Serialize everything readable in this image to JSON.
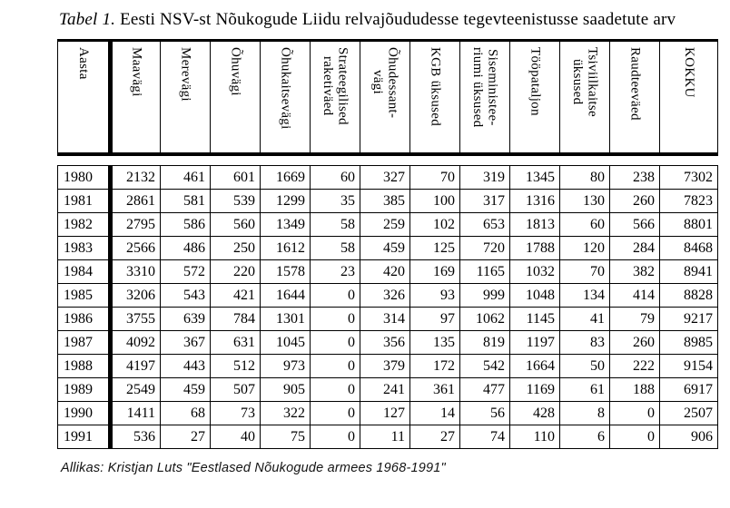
{
  "title": {
    "label_italic": "Tabel 1.",
    "label_rest": "Eesti NSV-st Nõukogude Liidu relvajõududesse tegevteenistusse saadetute arv"
  },
  "table": {
    "columns": [
      "Aasta",
      "Maavägi",
      "Merevägi",
      "Õhuvägi",
      "Õhukaitsevägi",
      "Strateegilised\nraketiväed",
      "Õhudessant-\nvägi",
      "KGB üksused",
      "Siseministee-\nriumi üksused",
      "Tööpataljon",
      "Tsiviilkaitse\nüksused",
      "Raudteeväed",
      "KOKKU"
    ],
    "rows": [
      {
        "year": "1980",
        "values": [
          2132,
          461,
          601,
          1669,
          60,
          327,
          70,
          319,
          1345,
          80,
          238,
          7302
        ]
      },
      {
        "year": "1981",
        "values": [
          2861,
          581,
          539,
          1299,
          35,
          385,
          100,
          317,
          1316,
          130,
          260,
          7823
        ]
      },
      {
        "year": "1982",
        "values": [
          2795,
          586,
          560,
          1349,
          58,
          259,
          102,
          653,
          1813,
          60,
          566,
          8801
        ]
      },
      {
        "year": "1983",
        "values": [
          2566,
          486,
          250,
          1612,
          58,
          459,
          125,
          720,
          1788,
          120,
          284,
          8468
        ]
      },
      {
        "year": "1984",
        "values": [
          3310,
          572,
          220,
          1578,
          23,
          420,
          169,
          1165,
          1032,
          70,
          382,
          8941
        ]
      },
      {
        "year": "1985",
        "values": [
          3206,
          543,
          421,
          1644,
          0,
          326,
          93,
          999,
          1048,
          134,
          414,
          8828
        ]
      },
      {
        "year": "1986",
        "values": [
          3755,
          639,
          784,
          1301,
          0,
          314,
          97,
          1062,
          1145,
          41,
          79,
          9217
        ]
      },
      {
        "year": "1987",
        "values": [
          4092,
          367,
          631,
          1045,
          0,
          356,
          135,
          819,
          1197,
          83,
          260,
          8985
        ]
      },
      {
        "year": "1988",
        "values": [
          4197,
          443,
          512,
          973,
          0,
          379,
          172,
          542,
          1664,
          50,
          222,
          9154
        ]
      },
      {
        "year": "1989",
        "values": [
          2549,
          459,
          507,
          905,
          0,
          241,
          361,
          477,
          1169,
          61,
          188,
          6917
        ]
      },
      {
        "year": "1990",
        "values": [
          1411,
          68,
          73,
          322,
          0,
          127,
          14,
          56,
          428,
          8,
          0,
          2507
        ]
      },
      {
        "year": "1991",
        "values": [
          536,
          27,
          40,
          75,
          0,
          11,
          27,
          74,
          110,
          6,
          0,
          906
        ]
      }
    ]
  },
  "footer": {
    "source": "Allikas: Kristjan Luts \"Eestlased Nõukogude armees 1968-1991\""
  }
}
